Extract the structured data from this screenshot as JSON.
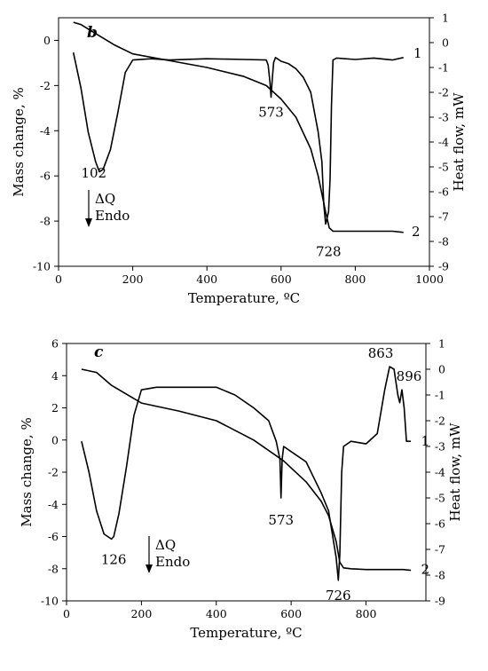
{
  "chart_data": [
    {
      "type": "line",
      "panel_label": "b",
      "xlabel": "Temperature, ºC",
      "ylabel_left": "Mass change, %",
      "ylabel_right": "Heat flow, mW",
      "xlim": [
        0,
        1000
      ],
      "xticks": [
        "0",
        "200",
        "400",
        "600",
        "800",
        "1000"
      ],
      "ylim_left": [
        -10,
        1
      ],
      "yticks_left": [
        "-10",
        "-8",
        "-6",
        "-4",
        "-2",
        "0"
      ],
      "ylim_right": [
        -9,
        1
      ],
      "yticks_right": [
        "-9",
        "-8",
        "-7",
        "-6",
        "-5",
        "-4",
        "-3",
        "-2",
        "-1",
        "0",
        "1"
      ],
      "legend_note": [
        "ΔQ",
        "Endo"
      ],
      "series": [
        {
          "name": "1",
          "axis": "right",
          "x": [
            40,
            60,
            80,
            100,
            110,
            120,
            140,
            160,
            180,
            200,
            250,
            300,
            400,
            500,
            560,
            565,
            570,
            573,
            576,
            580,
            585,
            590,
            600,
            620,
            640,
            660,
            680,
            700,
            710,
            715,
            720,
            725,
            728,
            732,
            736,
            740,
            750,
            800,
            850,
            900,
            930
          ],
          "y": [
            -0.4,
            -1.8,
            -3.6,
            -4.8,
            -5.2,
            -5.1,
            -4.3,
            -2.8,
            -1.2,
            -0.7,
            -0.65,
            -0.7,
            -0.65,
            -0.68,
            -0.7,
            -0.9,
            -1.6,
            -2.2,
            -1.5,
            -0.8,
            -0.6,
            -0.65,
            -0.75,
            -0.85,
            -1.05,
            -1.4,
            -2.0,
            -3.6,
            -4.8,
            -6.5,
            -7.3,
            -7.0,
            -6.8,
            -5.5,
            -2.5,
            -0.7,
            -0.62,
            -0.68,
            -0.62,
            -0.7,
            -0.6
          ]
        },
        {
          "name": "2",
          "axis": "left",
          "x": [
            40,
            60,
            80,
            100,
            150,
            200,
            300,
            400,
            500,
            560,
            600,
            640,
            680,
            700,
            720,
            730,
            740,
            760,
            800,
            850,
            900,
            930
          ],
          "y": [
            0.8,
            0.7,
            0.5,
            0.3,
            -0.2,
            -0.6,
            -0.9,
            -1.2,
            -1.6,
            -2.0,
            -2.6,
            -3.4,
            -4.8,
            -6.0,
            -7.6,
            -8.3,
            -8.45,
            -8.45,
            -8.45,
            -8.45,
            -8.45,
            -8.5
          ]
        }
      ],
      "annotations": [
        "102",
        "573",
        "728",
        "1",
        "2"
      ]
    },
    {
      "type": "line",
      "panel_label": "c",
      "xlabel": "Temperature, ºC",
      "ylabel_left": "Mass change, %",
      "ylabel_right": "Heat flow, mW",
      "xlim": [
        0,
        960
      ],
      "xticks": [
        "0",
        "200",
        "400",
        "600",
        "800"
      ],
      "ylim_left": [
        -10,
        6
      ],
      "yticks_left": [
        "-10",
        "-8",
        "-6",
        "-4",
        "-2",
        "0",
        "2",
        "4",
        "6"
      ],
      "ylim_right": [
        -9,
        1
      ],
      "yticks_right": [
        "-9",
        "-8",
        "-7",
        "-6",
        "-5",
        "-4",
        "-3",
        "-2",
        "-1",
        "0",
        "1"
      ],
      "legend_note": [
        "ΔQ",
        "Endo"
      ],
      "series": [
        {
          "name": "1",
          "axis": "right",
          "x": [
            40,
            60,
            80,
            100,
            120,
            126,
            140,
            160,
            180,
            200,
            240,
            300,
            400,
            450,
            500,
            540,
            560,
            570,
            573,
            576,
            580,
            600,
            640,
            680,
            700,
            720,
            726,
            730,
            735,
            740,
            760,
            800,
            830,
            850,
            863,
            875,
            885,
            890,
            896,
            902,
            908,
            920
          ],
          "y": [
            -2.8,
            -4.0,
            -5.5,
            -6.4,
            -6.6,
            -6.5,
            -5.6,
            -3.8,
            -1.8,
            -0.8,
            -0.7,
            -0.7,
            -0.7,
            -1.0,
            -1.5,
            -2.0,
            -2.8,
            -3.5,
            -5.0,
            -3.5,
            -3.0,
            -3.2,
            -3.6,
            -4.8,
            -5.5,
            -7.3,
            -8.2,
            -7.2,
            -4.0,
            -3.0,
            -2.8,
            -2.9,
            -2.5,
            -0.8,
            0.1,
            0.0,
            -1.0,
            -1.3,
            -0.8,
            -1.5,
            -2.8,
            -2.8
          ]
        },
        {
          "name": "2",
          "axis": "left",
          "x": [
            40,
            80,
            120,
            200,
            300,
            400,
            500,
            580,
            640,
            680,
            700,
            720,
            730,
            740,
            760,
            800,
            850,
            900,
            920
          ],
          "y": [
            4.4,
            4.2,
            3.4,
            2.3,
            1.8,
            1.2,
            0.0,
            -1.3,
            -2.6,
            -3.8,
            -4.7,
            -6.3,
            -7.6,
            -7.95,
            -8.0,
            -8.05,
            -8.05,
            -8.05,
            -8.1
          ]
        }
      ],
      "annotations": [
        "126",
        "573",
        "726",
        "863",
        "896",
        "1",
        "2"
      ]
    }
  ]
}
